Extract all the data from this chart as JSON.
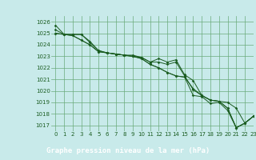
{
  "title": "Graphe pression niveau de la mer (hPa)",
  "bg_color": "#c8eaea",
  "grid_color": "#6aaa7a",
  "line_color": "#1a5c20",
  "footer_bg": "#2a6030",
  "footer_text_color": "#ffffff",
  "xlim": [
    -0.5,
    23
  ],
  "ylim": [
    1016.5,
    1026.5
  ],
  "yticks": [
    1017,
    1018,
    1019,
    1020,
    1021,
    1022,
    1023,
    1024,
    1025,
    1026
  ],
  "xticks": [
    0,
    1,
    2,
    3,
    4,
    5,
    6,
    7,
    8,
    9,
    10,
    11,
    12,
    13,
    14,
    15,
    16,
    17,
    18,
    19,
    20,
    21,
    22,
    23
  ],
  "lines": [
    [
      1025.7,
      1024.9,
      1024.9,
      1024.9,
      1024.2,
      1023.5,
      1023.3,
      1023.2,
      1023.1,
      1023.0,
      1022.9,
      1022.5,
      1022.8,
      1022.5,
      1022.7,
      1021.4,
      1020.9,
      1019.6,
      1019.2,
      1019.1,
      1019.0,
      1018.5,
      1017.2,
      1017.8
    ],
    [
      1025.3,
      1024.9,
      1024.9,
      1024.9,
      1024.3,
      1023.5,
      1023.3,
      1023.2,
      1023.1,
      1023.1,
      1022.9,
      1022.5,
      1022.5,
      1022.3,
      1022.5,
      1021.3,
      1020.1,
      1019.6,
      1019.2,
      1019.1,
      1018.5,
      1016.8,
      1017.2,
      1017.8
    ],
    [
      1025.0,
      1024.9,
      1024.8,
      1024.4,
      1024.0,
      1023.4,
      1023.3,
      1023.2,
      1023.1,
      1023.0,
      1022.8,
      1022.3,
      1022.0,
      1021.6,
      1021.3,
      1021.2,
      1020.2,
      1019.6,
      1019.2,
      1019.1,
      1018.5,
      1016.8,
      1017.2,
      1017.8
    ],
    [
      1025.0,
      1024.9,
      1024.8,
      1024.4,
      1024.0,
      1023.4,
      1023.3,
      1023.2,
      1023.1,
      1023.0,
      1022.8,
      1022.3,
      1022.0,
      1021.6,
      1021.3,
      1021.2,
      1019.6,
      1019.5,
      1018.9,
      1019.0,
      1018.3,
      1016.8,
      1017.2,
      1017.8
    ]
  ],
  "title_fontsize": 6.5,
  "tick_fontsize": 5.0
}
